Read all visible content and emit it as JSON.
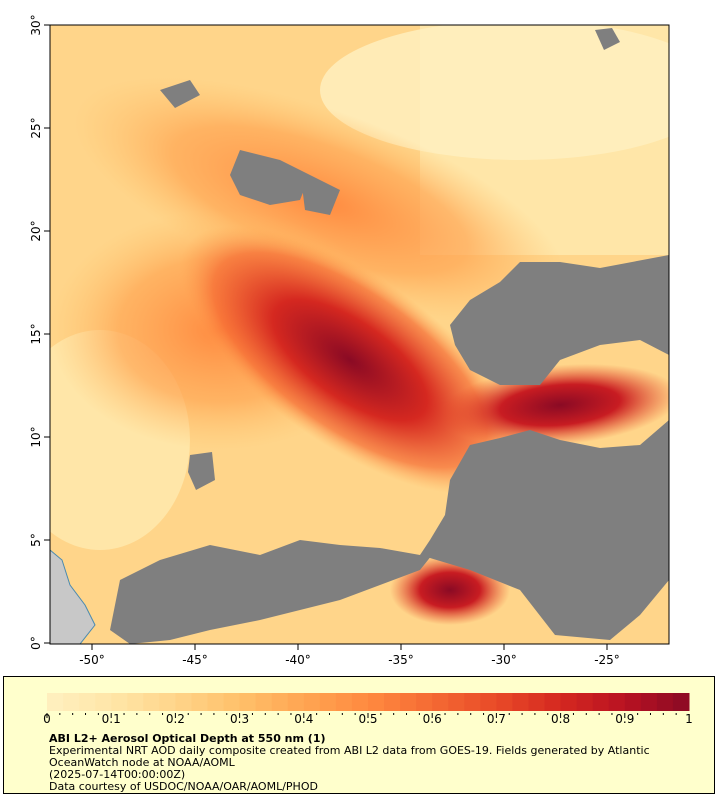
{
  "map": {
    "lat_labels": [
      "30°",
      "25°",
      "20°",
      "15°",
      "10°",
      "5°",
      "0°"
    ],
    "lon_labels": [
      "-50°",
      "-45°",
      "-40°",
      "-35°",
      "-30°",
      "-25°"
    ],
    "lat_range": [
      0,
      30
    ],
    "lon_range": [
      -52,
      -22
    ],
    "colors": {
      "nodata": "#7f7f7f",
      "land": "#c8c8c8",
      "low": "#fff3c0",
      "high": "#7a0020"
    }
  },
  "legend": {
    "ticks": [
      "0",
      "0.1",
      "0.2",
      "0.3",
      "0.4",
      "0.5",
      "0.6",
      "0.7",
      "0.8",
      "0.9",
      "1"
    ],
    "colors": [
      "#fff0c0",
      "#ffe6a8",
      "#ffd58a",
      "#ffc06a",
      "#ffa552",
      "#ff8a40",
      "#f56a33",
      "#e84a28",
      "#d52820",
      "#b81222",
      "#8a0a24"
    ],
    "title": "ABI L2+ Aerosol Optical Depth at 550 nm (1)",
    "description_line1": "Experimental NRT AOD daily composite created from ABI L2 data from GOES-19. Fields generated by Atlantic",
    "description_line2": "OceanWatch node at NOAA/AOML",
    "date": "(2025-07-14T00:00:00Z)",
    "credit": "Data courtesy of USDOC/NOAA/OAR/AOML/PHOD"
  }
}
